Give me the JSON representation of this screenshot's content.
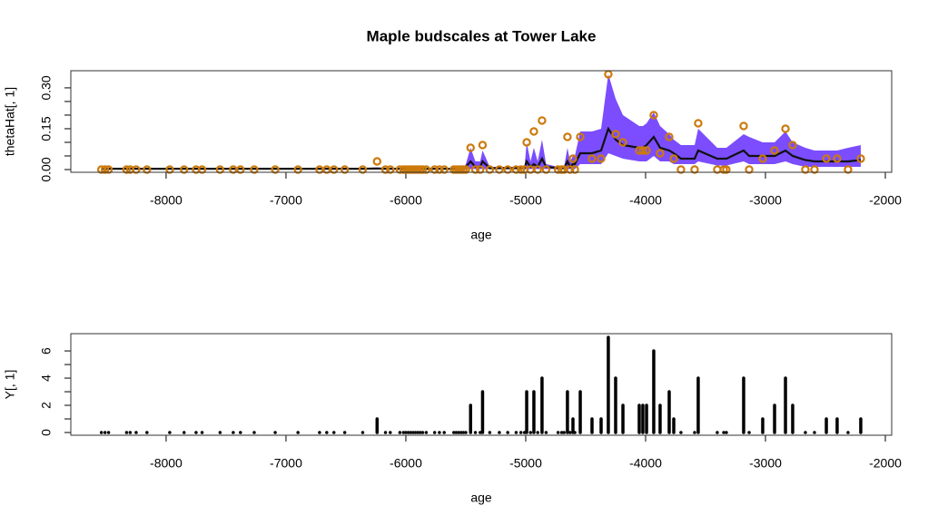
{
  "chart_data": [
    {
      "type": "line",
      "title": "Maple budscales at Tower Lake",
      "x_label": "age",
      "y_label": "thetaHat[, 1]",
      "xlim": [
        -8795,
        -1947
      ],
      "xticks": [
        -8000,
        -7000,
        -6000,
        -5000,
        -4000,
        -3000,
        -2000
      ],
      "ylim": [
        -0.01,
        0.363
      ],
      "yticks": [
        {
          "value": 0,
          "label": "0.00"
        },
        {
          "value": 0.05,
          "label": null
        },
        {
          "value": 0.1,
          "label": null
        },
        {
          "value": 0.15,
          "label": "0.15"
        },
        {
          "value": 0.2,
          "label": null
        },
        {
          "value": 0.25,
          "label": null
        },
        {
          "value": 0.3,
          "label": "0.30"
        }
      ],
      "x": [
        -8540,
        -8510,
        -8480,
        -8330,
        -8300,
        -8250,
        -8160,
        -7970,
        -7850,
        -7750,
        -7700,
        -7550,
        -7440,
        -7380,
        -7265,
        -7090,
        -6900,
        -6720,
        -6660,
        -6600,
        -6510,
        -6360,
        -6240,
        -6170,
        -6130,
        -6050,
        -6020,
        -6000,
        -5980,
        -5960,
        -5940,
        -5920,
        -5900,
        -5880,
        -5860,
        -5830,
        -5760,
        -5720,
        -5680,
        -5600,
        -5580,
        -5560,
        -5540,
        -5520,
        -5500,
        -5460,
        -5420,
        -5380,
        -5360,
        -5300,
        -5220,
        -5150,
        -5080,
        -5040,
        -5010,
        -4992,
        -4960,
        -4932,
        -4900,
        -4864,
        -4830,
        -4730,
        -4700,
        -4680,
        -4652,
        -4630,
        -4606,
        -4590,
        -4545,
        -4447,
        -4371,
        -4311,
        -4250,
        -4189,
        -4053,
        -4023,
        -3992,
        -3932,
        -3879,
        -3803,
        -3765,
        -3705,
        -3591,
        -3561,
        -3402,
        -3348,
        -3326,
        -3182,
        -3136,
        -3023,
        -2924,
        -2833,
        -2773,
        -2667,
        -2591,
        -2492,
        -2402,
        -2311,
        -2205
      ],
      "band": {
        "color": "#7b4dff",
        "lower": [
          0,
          0,
          0,
          0,
          0,
          0,
          0,
          0,
          0,
          0,
          0,
          0,
          0,
          0,
          0,
          0,
          0,
          0,
          0,
          0,
          0,
          0,
          0,
          0,
          0,
          0,
          0,
          0,
          0,
          0,
          0,
          0,
          0,
          0,
          0,
          0,
          0,
          0,
          0,
          0,
          0,
          0,
          0,
          0,
          0.002,
          0.002,
          0.002,
          0.002,
          0.002,
          0.002,
          0.002,
          0.002,
          0.002,
          0.002,
          0.002,
          0.002,
          0.002,
          0.002,
          0.002,
          0.002,
          0.002,
          0.002,
          0.002,
          0.002,
          0.002,
          0.002,
          0.002,
          0.002,
          0.02,
          0.02,
          0.02,
          0.06,
          0.05,
          0.04,
          0.03,
          0.03,
          0.03,
          0.05,
          0.03,
          0.03,
          0.02,
          0.02,
          0.02,
          0.03,
          0.015,
          0.015,
          0.015,
          0.03,
          0.02,
          0.02,
          0.02,
          0.03,
          0.02,
          0.01,
          0.01,
          0.01,
          0.01,
          0.01,
          0.01
        ],
        "upper": [
          0.006,
          0.006,
          0.006,
          0.006,
          0.006,
          0.006,
          0.006,
          0.006,
          0.006,
          0.006,
          0.006,
          0.006,
          0.006,
          0.006,
          0.006,
          0.006,
          0.006,
          0.006,
          0.006,
          0.006,
          0.006,
          0.006,
          0.008,
          0.006,
          0.006,
          0.006,
          0.006,
          0.006,
          0.006,
          0.006,
          0.006,
          0.006,
          0.006,
          0.006,
          0.006,
          0.006,
          0.006,
          0.006,
          0.006,
          0.006,
          0.006,
          0.006,
          0.006,
          0.006,
          0.02,
          0.08,
          0.03,
          0.03,
          0.07,
          0.01,
          0.01,
          0.01,
          0.01,
          0.01,
          0.01,
          0.1,
          0.03,
          0.08,
          0.03,
          0.11,
          0.02,
          0.01,
          0.01,
          0.01,
          0.08,
          0.03,
          0.05,
          0.05,
          0.14,
          0.14,
          0.15,
          0.35,
          0.26,
          0.2,
          0.16,
          0.16,
          0.17,
          0.21,
          0.16,
          0.13,
          0.11,
          0.09,
          0.09,
          0.15,
          0.08,
          0.08,
          0.08,
          0.13,
          0.12,
          0.1,
          0.1,
          0.14,
          0.1,
          0.08,
          0.07,
          0.07,
          0.07,
          0.08,
          0.09
        ]
      },
      "line": {
        "color": "#111111",
        "values": [
          0.003,
          0.003,
          0.003,
          0.003,
          0.003,
          0.003,
          0.003,
          0.003,
          0.003,
          0.003,
          0.003,
          0.003,
          0.003,
          0.003,
          0.003,
          0.003,
          0.003,
          0.003,
          0.003,
          0.003,
          0.003,
          0.003,
          0.004,
          0.003,
          0.003,
          0.003,
          0.003,
          0.003,
          0.003,
          0.003,
          0.003,
          0.003,
          0.003,
          0.003,
          0.003,
          0.003,
          0.003,
          0.003,
          0.003,
          0.003,
          0.003,
          0.003,
          0.003,
          0.003,
          0.01,
          0.03,
          0.01,
          0.01,
          0.03,
          0.005,
          0.005,
          0.005,
          0.005,
          0.005,
          0.005,
          0.03,
          0.01,
          0.02,
          0.01,
          0.04,
          0.01,
          0.005,
          0.005,
          0.005,
          0.03,
          0.01,
          0.02,
          0.02,
          0.06,
          0.06,
          0.07,
          0.15,
          0.11,
          0.09,
          0.08,
          0.08,
          0.09,
          0.12,
          0.08,
          0.07,
          0.06,
          0.04,
          0.04,
          0.07,
          0.04,
          0.04,
          0.04,
          0.07,
          0.05,
          0.05,
          0.05,
          0.07,
          0.05,
          0.035,
          0.03,
          0.03,
          0.03,
          0.03,
          0.035
        ]
      },
      "points": {
        "color": "#cc7a0c",
        "values": [
          0,
          0,
          0,
          0,
          0,
          0,
          0,
          0,
          0,
          0,
          0,
          0,
          0,
          0,
          0,
          0,
          0,
          0,
          0,
          0,
          0,
          0,
          0.03,
          0,
          0,
          0,
          0,
          0,
          0,
          0,
          0,
          0,
          0,
          0,
          0,
          0,
          0,
          0,
          0,
          0,
          0,
          0,
          0,
          0,
          0,
          0.08,
          0,
          0,
          0.09,
          0,
          0,
          0,
          0,
          0,
          0,
          0.1,
          0,
          0.14,
          0,
          0.18,
          0,
          0,
          0,
          0,
          0.12,
          0,
          0.04,
          0,
          0.12,
          0.04,
          0.04,
          0.35,
          0.13,
          0.1,
          0.07,
          0.07,
          0.07,
          0.2,
          0.06,
          0.12,
          0.04,
          0,
          0,
          0.17,
          0,
          0,
          0,
          0.16,
          0,
          0.04,
          0.07,
          0.15,
          0.09,
          0,
          0,
          0.04,
          0.04,
          0,
          0.04
        ]
      }
    },
    {
      "type": "bar",
      "x_label": "age",
      "y_label": "Y[, 1]",
      "color": "#000000",
      "xlim": [
        -8795,
        -1947
      ],
      "xticks": [
        -8000,
        -7000,
        -6000,
        -5000,
        -4000,
        -3000,
        -2000
      ],
      "ylim": [
        -0.2,
        7.27
      ],
      "yticks": [
        0,
        {
          "value": 1,
          "label": null
        },
        2,
        {
          "value": 3,
          "label": null
        },
        4,
        {
          "value": 5,
          "label": null
        },
        6
      ],
      "x": [
        -8540,
        -8510,
        -8480,
        -8330,
        -8300,
        -8250,
        -8160,
        -7970,
        -7850,
        -7750,
        -7700,
        -7550,
        -7440,
        -7380,
        -7265,
        -7090,
        -6900,
        -6720,
        -6660,
        -6600,
        -6510,
        -6360,
        -6240,
        -6170,
        -6130,
        -6050,
        -6020,
        -6000,
        -5980,
        -5960,
        -5940,
        -5920,
        -5900,
        -5880,
        -5860,
        -5830,
        -5760,
        -5720,
        -5680,
        -5600,
        -5580,
        -5560,
        -5540,
        -5520,
        -5500,
        -5460,
        -5420,
        -5380,
        -5360,
        -5300,
        -5220,
        -5150,
        -5080,
        -5040,
        -5010,
        -4992,
        -4960,
        -4932,
        -4900,
        -4864,
        -4830,
        -4730,
        -4700,
        -4680,
        -4652,
        -4630,
        -4606,
        -4590,
        -4545,
        -4447,
        -4371,
        -4311,
        -4250,
        -4189,
        -4053,
        -4023,
        -3992,
        -3932,
        -3879,
        -3803,
        -3765,
        -3705,
        -3591,
        -3561,
        -3402,
        -3348,
        -3326,
        -3182,
        -3136,
        -3023,
        -2924,
        -2833,
        -2773,
        -2667,
        -2591,
        -2492,
        -2402,
        -2311,
        -2205
      ],
      "values": [
        0,
        0,
        0,
        0,
        0,
        0,
        0,
        0,
        0,
        0,
        0,
        0,
        0,
        0,
        0,
        0,
        0,
        0,
        0,
        0,
        0,
        0,
        1,
        0,
        0,
        0,
        0,
        0,
        0,
        0,
        0,
        0,
        0,
        0,
        0,
        0,
        0,
        0,
        0,
        0,
        0,
        0,
        0,
        0,
        0,
        2,
        0,
        0,
        3,
        0,
        0,
        0,
        0,
        0,
        0,
        3,
        0,
        3,
        0,
        4,
        0,
        0,
        0,
        0,
        3,
        0,
        1,
        0,
        3,
        1,
        1,
        7,
        4,
        2,
        2,
        2,
        2,
        6,
        2,
        3,
        1,
        0,
        0,
        4,
        0,
        0,
        0,
        4,
        0,
        1,
        2,
        4,
        2,
        0,
        0,
        1,
        1,
        0,
        1
      ]
    }
  ]
}
